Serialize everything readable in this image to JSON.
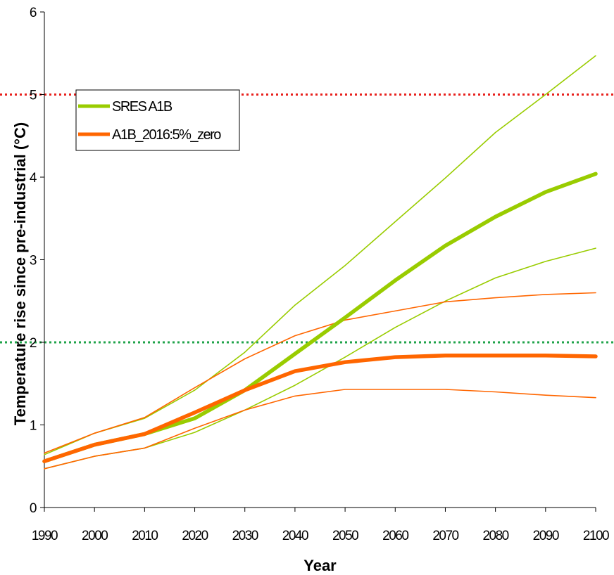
{
  "chart_data": {
    "type": "line",
    "title": "",
    "xlabel": "Year",
    "ylabel": "Temperature rise since pre-industrial (°C)",
    "xlim": [
      1990,
      2100
    ],
    "ylim": [
      0,
      6
    ],
    "x_ticks": [
      "1990",
      "2000",
      "2010",
      "2020",
      "2030",
      "2040",
      "2050",
      "2060",
      "2070",
      "2080",
      "2090",
      "2100"
    ],
    "y_ticks": [
      "0",
      "1",
      "2",
      "3",
      "4",
      "5",
      "6"
    ],
    "grid": false,
    "legend_position": "top-left",
    "x": [
      1990,
      2000,
      2010,
      2020,
      2030,
      2040,
      2050,
      2060,
      2070,
      2080,
      2090,
      2100
    ],
    "reference_lines": [
      {
        "y": 5,
        "color": "#e8201c",
        "style": "dotted"
      },
      {
        "y": 2,
        "color": "#1fa34a",
        "style": "dotted"
      }
    ],
    "series": [
      {
        "name": "SRES A1B",
        "color": "#99cc00",
        "width": "thick",
        "in_legend": true,
        "values": [
          0.56,
          0.76,
          0.89,
          1.08,
          1.42,
          1.86,
          2.3,
          2.75,
          3.17,
          3.52,
          3.82,
          4.04
        ]
      },
      {
        "name": "",
        "color": "#99cc00",
        "width": "thin",
        "in_legend": false,
        "values": [
          0.64,
          0.9,
          1.08,
          1.42,
          1.88,
          2.45,
          2.93,
          3.46,
          3.99,
          4.54,
          5.0,
          5.47
        ]
      },
      {
        "name": "",
        "color": "#99cc00",
        "width": "thin",
        "in_legend": false,
        "values": [
          0.47,
          0.62,
          0.72,
          0.91,
          1.18,
          1.48,
          1.82,
          2.18,
          2.5,
          2.78,
          2.98,
          3.14
        ]
      },
      {
        "name": "A1B_2016:5%_zero",
        "color": "#ff6600",
        "width": "thick",
        "in_legend": true,
        "values": [
          0.56,
          0.76,
          0.89,
          1.15,
          1.42,
          1.65,
          1.76,
          1.82,
          1.84,
          1.84,
          1.84,
          1.83
        ]
      },
      {
        "name": "",
        "color": "#ff6600",
        "width": "thin",
        "in_legend": false,
        "values": [
          0.66,
          0.9,
          1.09,
          1.45,
          1.8,
          2.08,
          2.27,
          2.38,
          2.49,
          2.54,
          2.58,
          2.6
        ]
      },
      {
        "name": "",
        "color": "#ff6600",
        "width": "thin",
        "in_legend": false,
        "values": [
          0.47,
          0.62,
          0.72,
          0.96,
          1.18,
          1.35,
          1.43,
          1.43,
          1.43,
          1.4,
          1.36,
          1.33
        ]
      }
    ]
  }
}
